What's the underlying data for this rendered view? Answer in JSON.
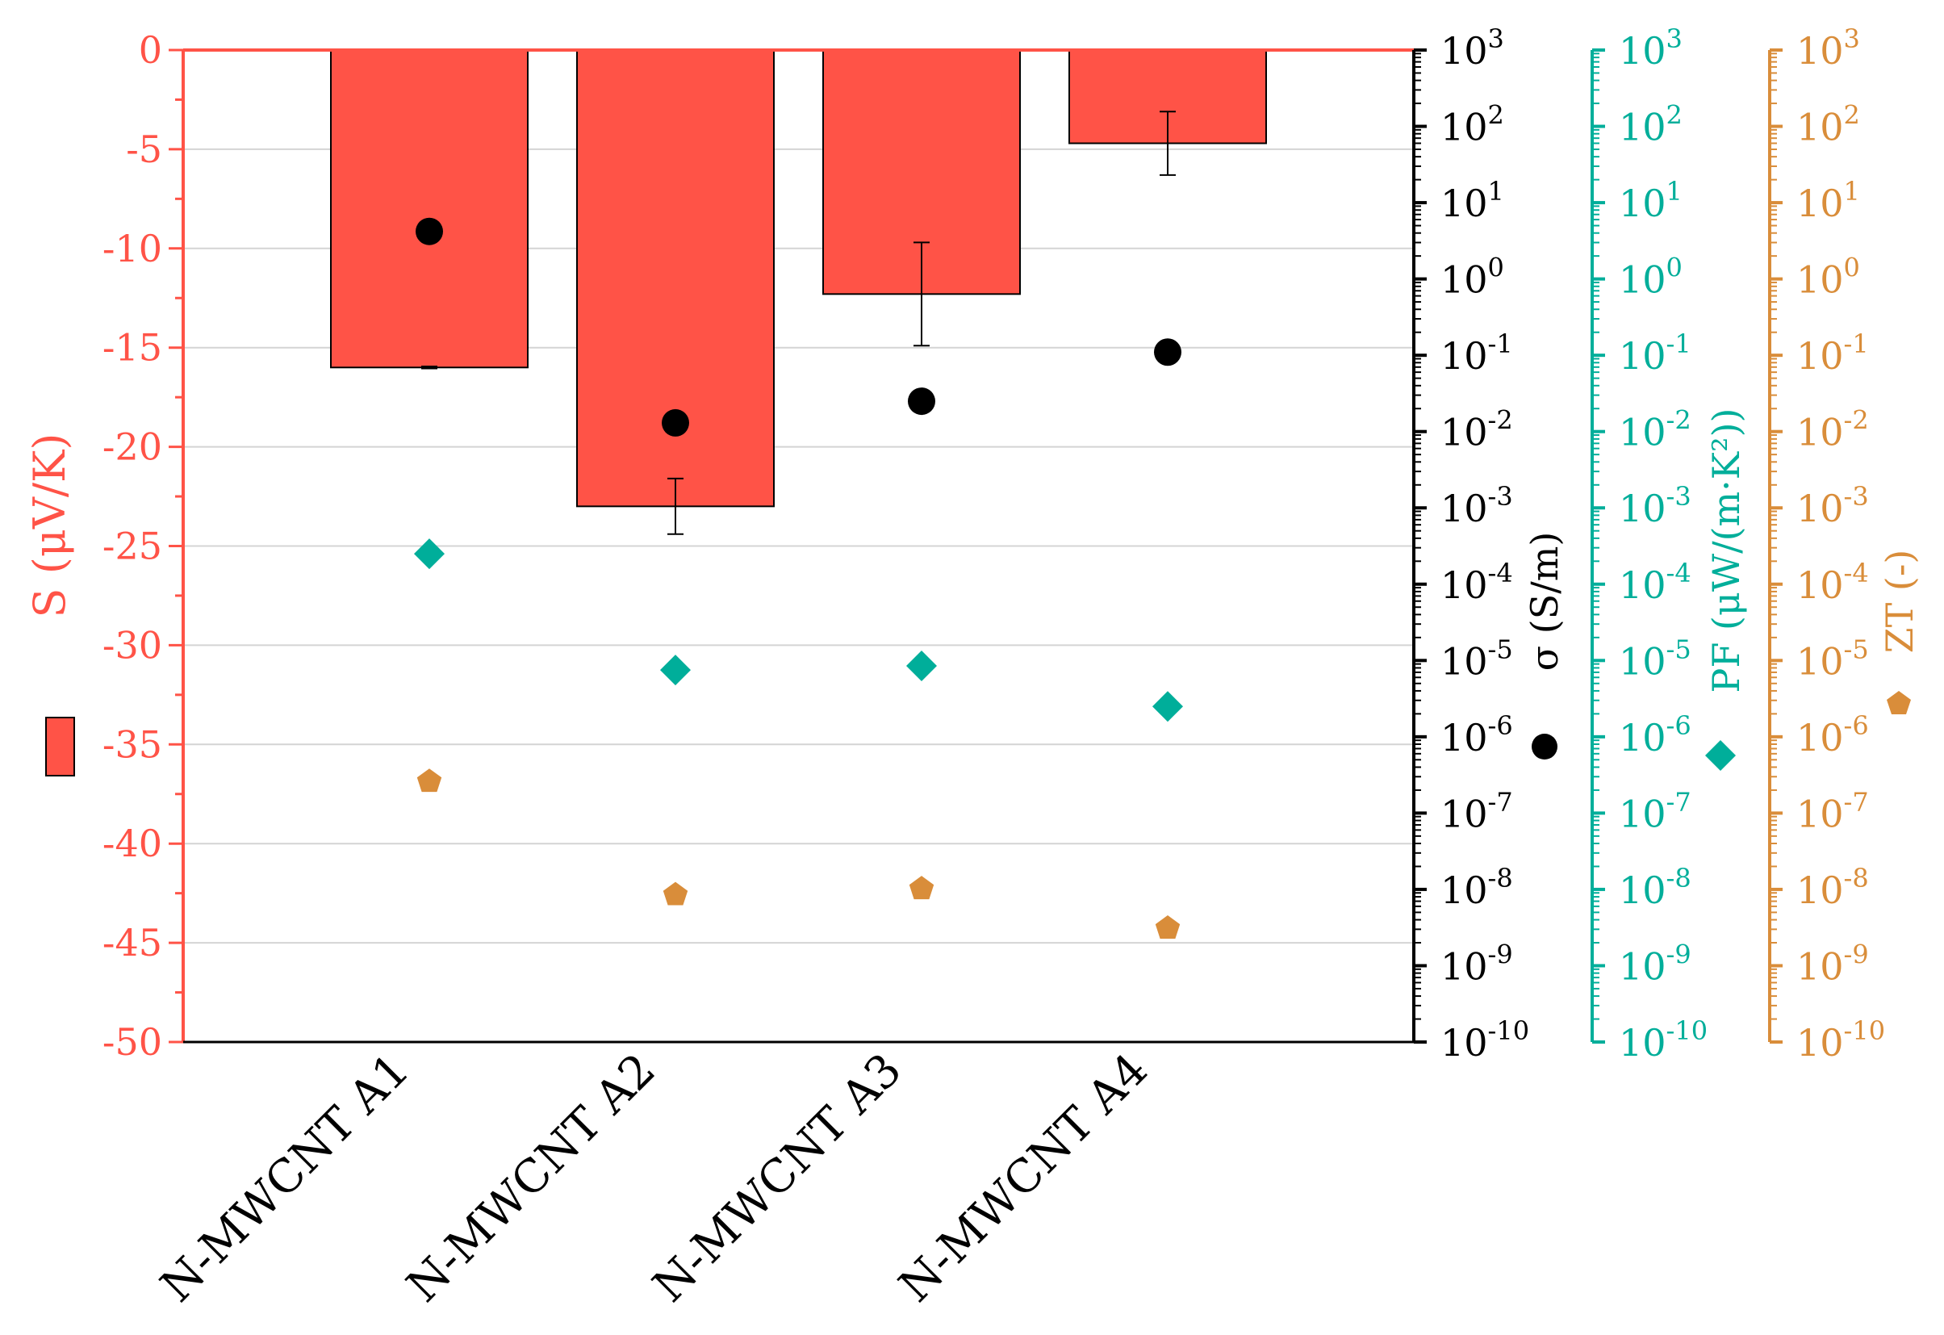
{
  "chart_data": {
    "type": "bar",
    "categories": [
      "N-MWCNT A1",
      "N-MWCNT A2",
      "N-MWCNT A3",
      "N-MWCNT A4"
    ],
    "left_axis": {
      "label": "S (μV/K)",
      "range": [
        -50,
        0
      ],
      "ticks": [
        "0",
        "-5",
        "-10",
        "-15",
        "-20",
        "-25",
        "-30",
        "-35",
        "-40",
        "-45",
        "-50"
      ],
      "color": "#FF5347"
    },
    "log_axes": [
      {
        "key": "sigma",
        "label": "σ (S/m)",
        "color": "#000000",
        "marker": "circle",
        "range_exp": [
          -10,
          3
        ]
      },
      {
        "key": "pf",
        "label": "PF (μW/(m·K²))",
        "color": "#00AE9A",
        "marker": "diamond",
        "range_exp": [
          -10,
          3
        ]
      },
      {
        "key": "zt",
        "label": "ZT (-)",
        "color": "#D98D3A",
        "marker": "pentagon",
        "range_exp": [
          -10,
          3
        ]
      }
    ],
    "log_tick_exponents": [
      "3",
      "2",
      "1",
      "0",
      "-1",
      "-2",
      "-3",
      "-4",
      "-5",
      "-6",
      "-7",
      "-8",
      "-9",
      "-10"
    ],
    "log_tick_base": "10",
    "series": [
      {
        "name": "S",
        "type": "bar",
        "axis": "left",
        "color": "#FF5347",
        "values": [
          -16.0,
          -23.0,
          -12.3,
          -4.7
        ],
        "errors": [
          0.05,
          1.4,
          2.6,
          1.6
        ]
      },
      {
        "name": "σ",
        "type": "scatter",
        "axis": "sigma",
        "values": [
          4.2,
          0.013,
          0.025,
          0.11
        ]
      },
      {
        "name": "PF",
        "type": "scatter",
        "axis": "pf",
        "values": [
          0.00025,
          7.5e-06,
          8.5e-06,
          2.5e-06
        ]
      },
      {
        "name": "ZT",
        "type": "scatter",
        "axis": "zt",
        "values": [
          2.6e-07,
          8.5e-09,
          1.02e-08,
          3.1e-09
        ]
      }
    ],
    "grid": true
  }
}
